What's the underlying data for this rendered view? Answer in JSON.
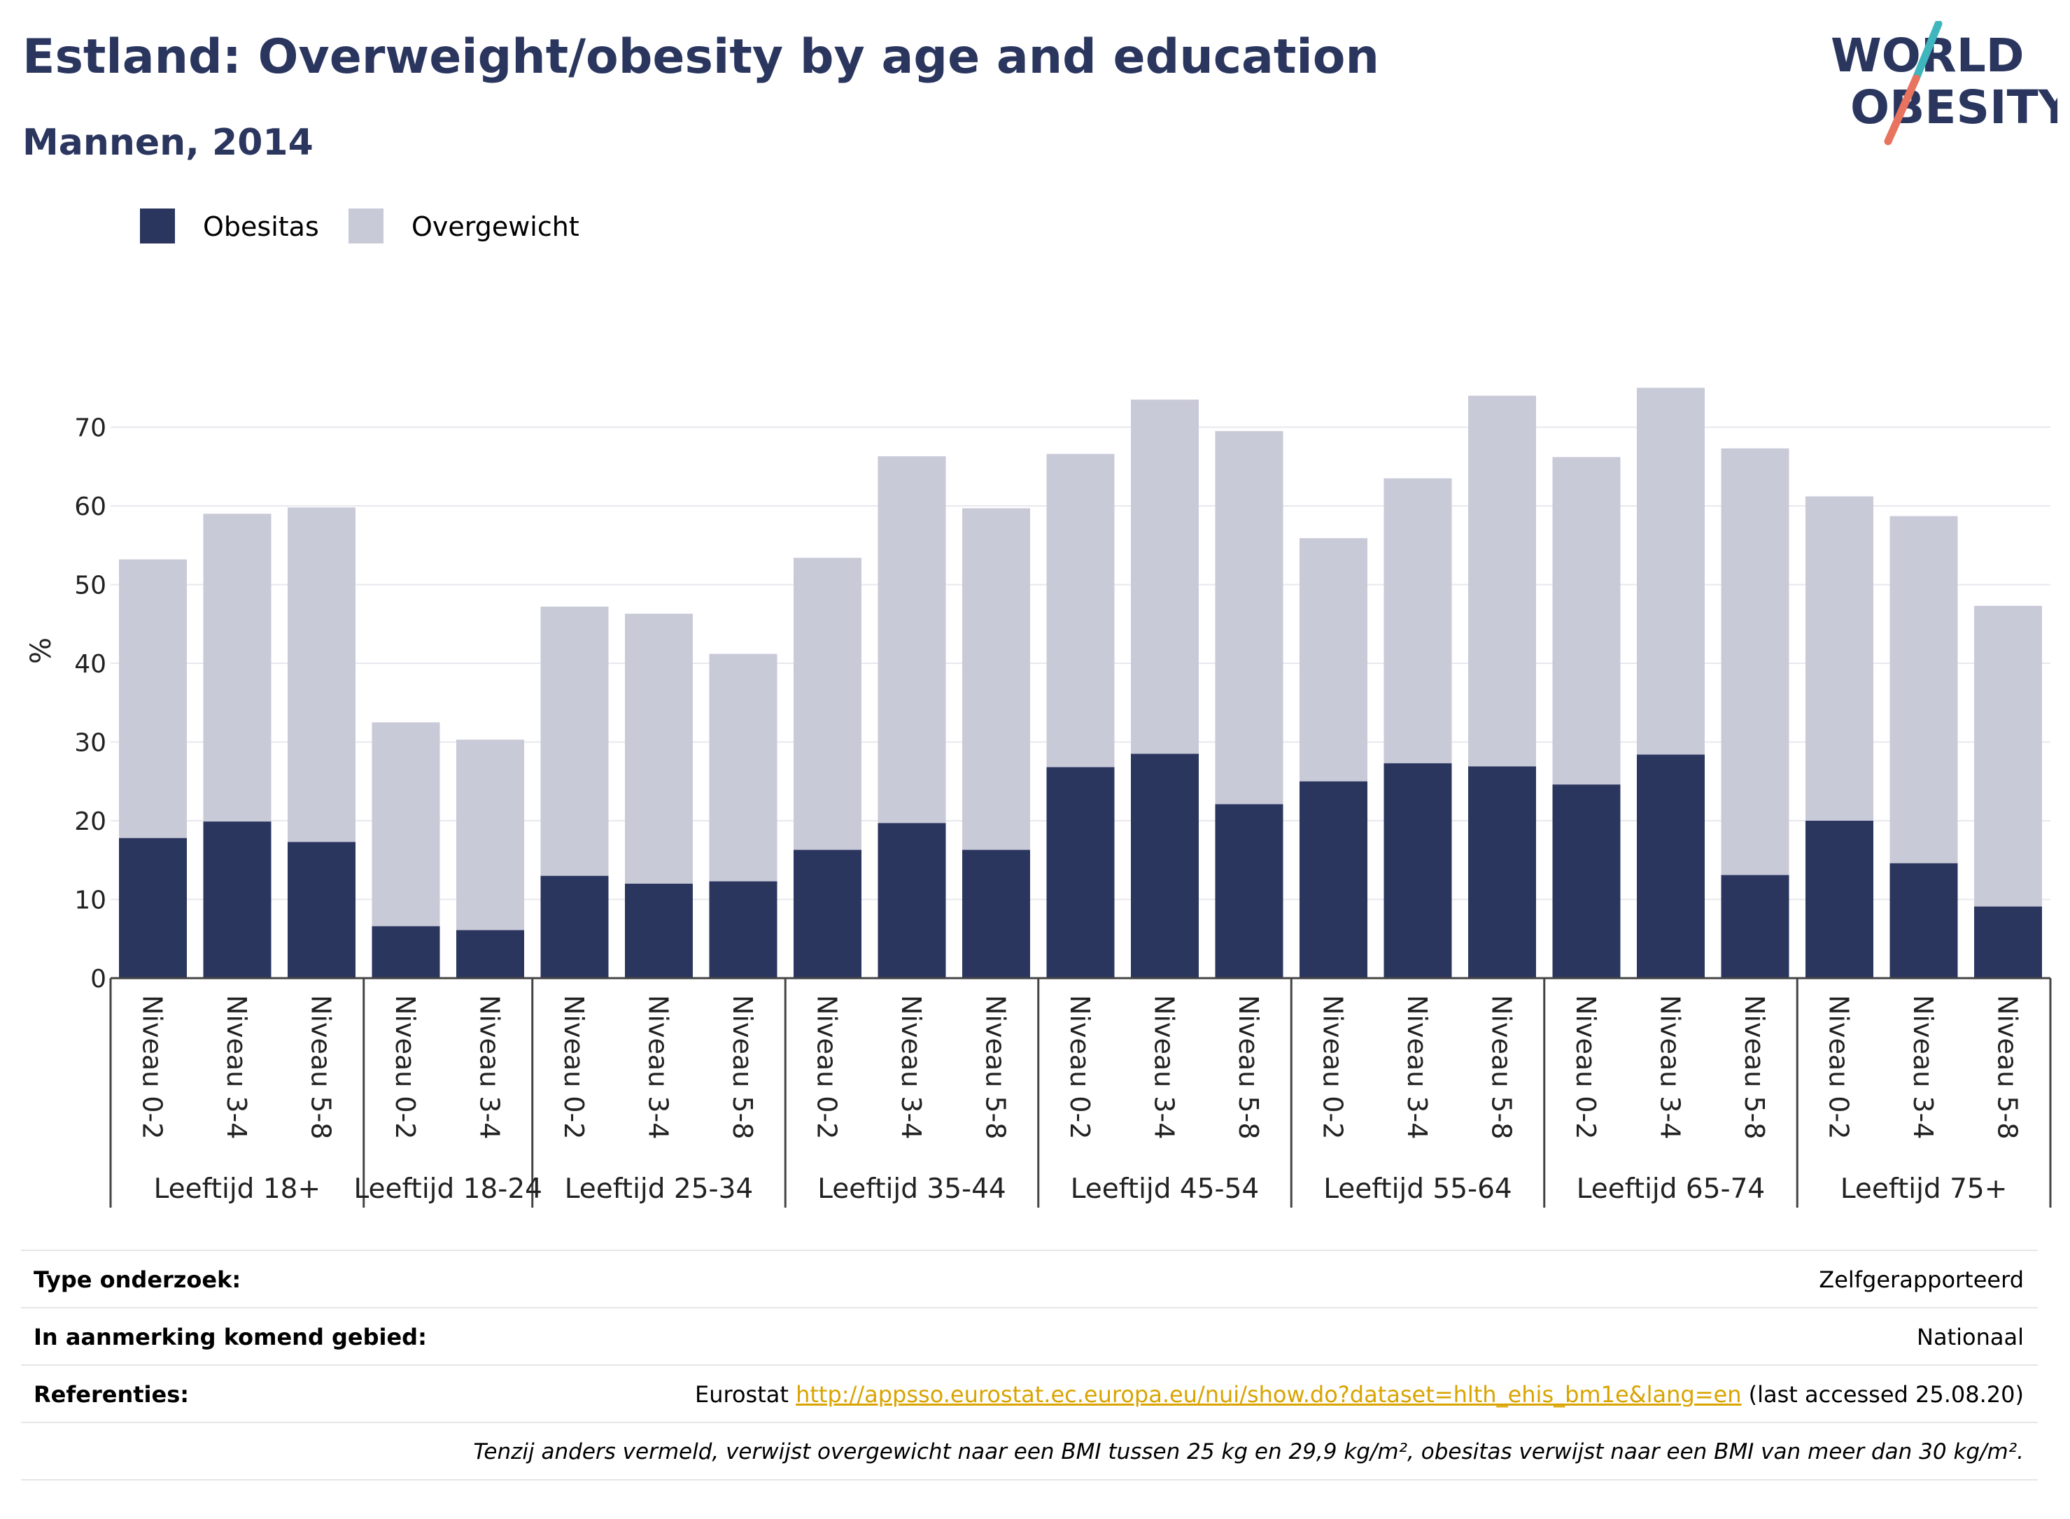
{
  "header": {
    "title": "Estland: Overweight/obesity by age and education",
    "subtitle": "Mannen, 2014"
  },
  "logo": {
    "line1": "WORLD",
    "line2": "OBESITY"
  },
  "chart_data": {
    "type": "bar",
    "stacked": true,
    "ylabel": "%",
    "ylim": [
      0,
      80
    ],
    "yticks": [
      0,
      10,
      20,
      30,
      40,
      50,
      60,
      70
    ],
    "grid": true,
    "legend_position": "top-left",
    "series": [
      {
        "name": "Obesitas",
        "color": "#2b365f"
      },
      {
        "name": "Overgewicht",
        "color": "#c9cad8"
      }
    ],
    "groups": [
      {
        "label": "Leeftijd 18+",
        "categories": [
          "Niveau 0-2",
          "Niveau 3-4",
          "Niveau 5-8"
        ],
        "obesitas": [
          17.8,
          19.9,
          17.3
        ],
        "total": [
          53.2,
          59.0,
          59.8
        ]
      },
      {
        "label": "Leeftijd 18-24",
        "categories": [
          "Niveau 0-2",
          "Niveau 3-4"
        ],
        "obesitas": [
          6.6,
          6.1
        ],
        "total": [
          32.5,
          30.3
        ]
      },
      {
        "label": "Leeftijd 25-34",
        "categories": [
          "Niveau 0-2",
          "Niveau 3-4",
          "Niveau 5-8"
        ],
        "obesitas": [
          13.0,
          12.0,
          12.3
        ],
        "total": [
          47.2,
          46.3,
          41.2
        ]
      },
      {
        "label": "Leeftijd 35-44",
        "categories": [
          "Niveau 0-2",
          "Niveau 3-4",
          "Niveau 5-8"
        ],
        "obesitas": [
          16.3,
          19.7,
          16.3
        ],
        "total": [
          53.4,
          66.3,
          59.7
        ]
      },
      {
        "label": "Leeftijd 45-54",
        "categories": [
          "Niveau 0-2",
          "Niveau 3-4",
          "Niveau 5-8"
        ],
        "obesitas": [
          26.8,
          28.5,
          22.1
        ],
        "total": [
          66.6,
          73.5,
          69.5
        ]
      },
      {
        "label": "Leeftijd 55-64",
        "categories": [
          "Niveau 0-2",
          "Niveau 3-4",
          "Niveau 5-8"
        ],
        "obesitas": [
          25.0,
          27.3,
          26.9
        ],
        "total": [
          55.9,
          63.5,
          74.0
        ]
      },
      {
        "label": "Leeftijd 65-74",
        "categories": [
          "Niveau 0-2",
          "Niveau 3-4",
          "Niveau 5-8"
        ],
        "obesitas": [
          24.6,
          28.4,
          13.1
        ],
        "total": [
          66.2,
          75.0,
          67.3
        ]
      },
      {
        "label": "Leeftijd 75+",
        "categories": [
          "Niveau 0-2",
          "Niveau 3-4",
          "Niveau 5-8"
        ],
        "obesitas": [
          20.0,
          14.6,
          9.1
        ],
        "total": [
          61.2,
          58.7,
          47.3
        ]
      }
    ]
  },
  "info": {
    "type_key": "Type onderzoek:",
    "type_value": "Zelfgerapporteerd",
    "area_key": "In aanmerking komend gebied:",
    "area_value": "Nationaal",
    "refs_key": "Referenties:",
    "refs_prefix": "Eurostat ",
    "refs_link": "http://appsso.eurostat.ec.europa.eu/nui/show.do?dataset=hlth_ehis_bm1e&lang=en",
    "refs_suffix": " (last accessed 25.08.20)",
    "note": "Tenzij anders vermeld, verwijst overgewicht naar een BMI tussen 25 kg en 29,9 kg/m², obesitas verwijst naar een BMI van meer dan 30 kg/m²."
  }
}
